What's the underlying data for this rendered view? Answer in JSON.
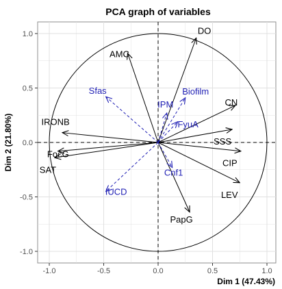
{
  "chart_data": {
    "type": "scatter",
    "title": "PCA graph of variables",
    "xlabel": "Dim 1 (47.43%)",
    "ylabel": "Dim 2 (21.80%)",
    "xlim": [
      -1.1,
      1.1
    ],
    "ylim": [
      -1.1,
      1.1
    ],
    "x_ticks": [
      "-1.0",
      "-0.5",
      "0.0",
      "0.5",
      "1.0"
    ],
    "y_ticks": [
      "-1.0",
      "-0.5",
      "0.0",
      "0.5",
      "1.0"
    ],
    "grid": true,
    "unit_circle": true,
    "colors": {
      "active": "#000000",
      "supplementary": "#1f1fb4",
      "grid": "#e0e0e0",
      "frame": "#8c8c8c"
    },
    "series": [
      {
        "name": "active",
        "style": "solid",
        "points": [
          {
            "label": "DO",
            "x": 0.35,
            "y": 0.96
          },
          {
            "label": "AMC",
            "x": -0.28,
            "y": 0.82
          },
          {
            "label": "CN",
            "x": 0.71,
            "y": 0.34
          },
          {
            "label": "SSS",
            "x": 0.68,
            "y": 0.12
          },
          {
            "label": "CIP",
            "x": 0.76,
            "y": -0.08
          },
          {
            "label": "LEV",
            "x": 0.75,
            "y": -0.37
          },
          {
            "label": "PapG",
            "x": 0.29,
            "y": -0.64
          },
          {
            "label": "IRONB",
            "x": -0.88,
            "y": 0.09
          },
          {
            "label": "FocG",
            "x": -0.92,
            "y": -0.08
          },
          {
            "label": "SAT",
            "x": -0.95,
            "y": -0.14
          }
        ]
      },
      {
        "name": "supplementary",
        "style": "dashed",
        "points": [
          {
            "label": "Biofilm",
            "x": 0.25,
            "y": 0.41
          },
          {
            "label": "IPM",
            "x": 0.08,
            "y": 0.27
          },
          {
            "label": "FyuA",
            "x": 0.18,
            "y": 0.19
          },
          {
            "label": "Sfas",
            "x": -0.48,
            "y": 0.42
          },
          {
            "label": "Cnf1",
            "x": 0.13,
            "y": -0.23
          },
          {
            "label": "IUCD",
            "x": -0.48,
            "y": -0.45
          }
        ]
      }
    ]
  }
}
